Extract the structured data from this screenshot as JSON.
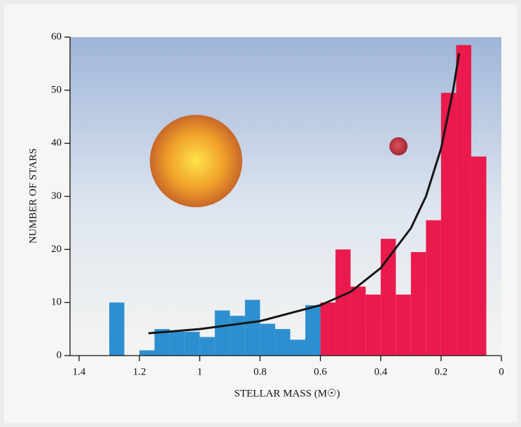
{
  "chart_data": {
    "type": "histogram",
    "x_label": "STELLAR MASS (M☉)",
    "y_label": "NUMBER OF STARS",
    "xlim": [
      1.43,
      0
    ],
    "ylim": [
      0,
      60
    ],
    "xticks": [
      1.4,
      1.2,
      1,
      0.8,
      0.6,
      0.4,
      0.2,
      0
    ],
    "yticks": [
      0,
      10,
      20,
      30,
      40,
      50,
      60
    ],
    "series": [
      {
        "color": "#2e8fd0",
        "bins": [
          1.3,
          1.25,
          1.2,
          1.15,
          1.1,
          1.05,
          1.0,
          0.95,
          0.9,
          0.85,
          0.8,
          0.75,
          0.7,
          0.65,
          0.6
        ],
        "counts": [
          10,
          0,
          1,
          5,
          4.5,
          4.5,
          3.5,
          8.5,
          7.5,
          10.5,
          6,
          5,
          3,
          9.5
        ]
      },
      {
        "color": "#ea1a4c",
        "bins": [
          0.6,
          0.55,
          0.5,
          0.45,
          0.4,
          0.35,
          0.3,
          0.25,
          0.2,
          0.15,
          0.1,
          0.05
        ],
        "counts": [
          10,
          20,
          13,
          11.5,
          22,
          11.5,
          19.5,
          25.5,
          49.5,
          58.5,
          37.5
        ]
      }
    ],
    "curve": {
      "color": "#151515",
      "x": [
        1.17,
        1.0,
        0.8,
        0.6,
        0.5,
        0.4,
        0.3,
        0.25,
        0.2,
        0.16,
        0.14
      ],
      "y": [
        4.2,
        5,
        6.5,
        9.5,
        12,
        16.5,
        24,
        30,
        39,
        50,
        57
      ]
    }
  }
}
